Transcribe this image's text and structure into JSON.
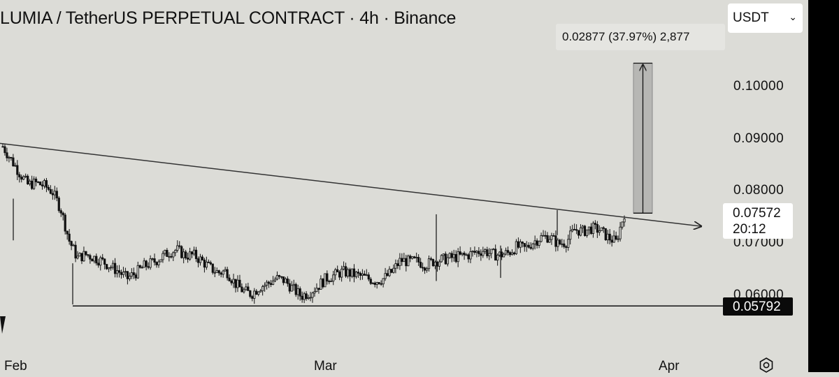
{
  "header": {
    "title": "LUMIA / TetherUS PERPETUAL CONTRACT · 4h · Binance",
    "currency_select": {
      "value": "USDT",
      "chevron": "chevron-down-icon"
    }
  },
  "measure": {
    "label": "0.02877 (37.97%) 2,877"
  },
  "price": {
    "last": "0.07572",
    "countdown": "20:12"
  },
  "colors": {
    "background": "#dcdcd7",
    "candle": "#111111",
    "measure_fill": "#b7b7b4"
  },
  "chart_data": {
    "type": "candlestick",
    "title": "LUMIA / TetherUS PERPETUAL CONTRACT · 4h · Binance",
    "x_ticks": [
      "Feb",
      "Mar",
      "Apr"
    ],
    "y_ticks": [
      "0.10000",
      "0.09000",
      "0.08000",
      "0.07000",
      "0.06000"
    ],
    "y_tick_values": [
      0.1,
      0.09,
      0.08,
      0.07,
      0.06
    ],
    "ylim": [
      0.05,
      0.112
    ],
    "grid": false,
    "last_price": 0.07572,
    "horizontal_line": {
      "value": 0.05792,
      "label": "0.05792"
    },
    "trendline": {
      "start": 0.0891,
      "end": 0.0732
    },
    "measure": {
      "from": 0.07572,
      "to": 0.10449,
      "change": 0.02877,
      "percent": 37.97,
      "ticks": 2877
    },
    "close_path": [
      0.0885,
      0.086,
      0.0835,
      0.0812,
      0.0815,
      0.081,
      0.0798,
      0.0765,
      0.0705,
      0.0671,
      0.0678,
      0.0672,
      0.0665,
      0.0655,
      0.0645,
      0.0632,
      0.0642,
      0.0655,
      0.0662,
      0.0671,
      0.0682,
      0.0687,
      0.0676,
      0.0677,
      0.0666,
      0.0652,
      0.0643,
      0.0646,
      0.0623,
      0.0608,
      0.0602,
      0.0616,
      0.0622,
      0.0632,
      0.0628,
      0.0612,
      0.0598,
      0.0605,
      0.0617,
      0.0632,
      0.0638,
      0.0645,
      0.0641,
      0.0637,
      0.0632,
      0.0627,
      0.0632,
      0.0645,
      0.0667,
      0.0664,
      0.0665,
      0.0658,
      0.0665,
      0.0668,
      0.0671,
      0.0674,
      0.0676,
      0.0682,
      0.0686,
      0.0678,
      0.0677,
      0.0681,
      0.0693,
      0.0689,
      0.0702,
      0.0711,
      0.0712,
      0.0698,
      0.0702,
      0.0726,
      0.0722,
      0.0728,
      0.0725,
      0.0711,
      0.0702,
      0.0757
    ]
  }
}
